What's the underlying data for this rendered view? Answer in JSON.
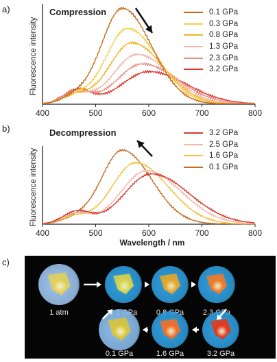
{
  "panels": {
    "a": "a)",
    "b": "b)",
    "c": "c)"
  },
  "chart_data": [
    {
      "type": "line",
      "title": "Compression",
      "xlabel": "",
      "ylabel": "Fluorescence intensity",
      "xlim": [
        400,
        800
      ],
      "x_ticks": [
        "400",
        "500",
        "600",
        "700",
        "800"
      ],
      "legend_position": "top-right",
      "arrow": "down-right",
      "series": [
        {
          "name": "0.1 GPa",
          "color": "#c56b1d",
          "peak_nm": 550,
          "peak": 1.0,
          "width": 48,
          "blue_nm": 460,
          "blue": 0.07
        },
        {
          "name": "0.3 GPa",
          "color": "#f2cf46",
          "peak_nm": 560,
          "peak": 0.79,
          "width": 50,
          "blue_nm": 460,
          "blue": 0.08
        },
        {
          "name": "0.8 GPa",
          "color": "#f0b22c",
          "peak_nm": 568,
          "peak": 0.64,
          "width": 52,
          "blue_nm": 462,
          "blue": 0.09
        },
        {
          "name": "1.3 GPa",
          "color": "#f4b7a8",
          "peak_nm": 578,
          "peak": 0.52,
          "width": 54,
          "blue_nm": 464,
          "blue": 0.11
        },
        {
          "name": "2.3 GPa",
          "color": "#ec8a86",
          "peak_nm": 588,
          "peak": 0.42,
          "width": 58,
          "blue_nm": 464,
          "blue": 0.13
        },
        {
          "name": "3.2 GPa",
          "color": "#d9382d",
          "peak_nm": 600,
          "peak": 0.34,
          "width": 62,
          "blue_nm": 466,
          "blue": 0.15
        }
      ]
    },
    {
      "type": "line",
      "title": "Decompression",
      "xlabel": "Wavelength / nm",
      "ylabel": "Fluorescence intensity",
      "xlim": [
        400,
        800
      ],
      "x_ticks": [
        "400",
        "500",
        "600",
        "700",
        "800"
      ],
      "legend_position": "top-right",
      "arrow": "up-left",
      "series": [
        {
          "name": "3.2 GPa",
          "color": "#d9382d",
          "peak_nm": 605,
          "peak": 0.68,
          "width": 62,
          "blue_nm": 465,
          "blue": 0.17
        },
        {
          "name": "2.5 GPa",
          "color": "#f4b7a8",
          "peak_nm": 595,
          "peak": 0.72,
          "width": 58,
          "blue_nm": 463,
          "blue": 0.14
        },
        {
          "name": "1.6 GPa",
          "color": "#f2c23a",
          "peak_nm": 575,
          "peak": 0.83,
          "width": 54,
          "blue_nm": 461,
          "blue": 0.1
        },
        {
          "name": "0.1 GPa",
          "color": "#c56b1d",
          "peak_nm": 550,
          "peak": 1.0,
          "width": 48,
          "blue_nm": 460,
          "blue": 0.07
        }
      ]
    }
  ],
  "photos": [
    {
      "label": "1 atm",
      "glow": "#9fc6f2",
      "spot": "#e0cf5a"
    },
    {
      "label": "0.1 GPa",
      "glow": "#2f9fe0",
      "spot": "#d7d24a"
    },
    {
      "label": "0.8 GPa",
      "glow": "#2f9fe0",
      "spot": "#e6a62a"
    },
    {
      "label": "2.3 GPa",
      "glow": "#2f9fe0",
      "spot": "#f07a2a"
    },
    {
      "label": "3.2 GPa",
      "glow": "#2f9fe0",
      "spot": "#e23a1e"
    },
    {
      "label": "1.6 GPa",
      "glow": "#2f9fe0",
      "spot": "#f0702a"
    },
    {
      "label": "0.1 GPa",
      "glow": "#8cc0f0",
      "spot": "#d8c43c"
    }
  ]
}
